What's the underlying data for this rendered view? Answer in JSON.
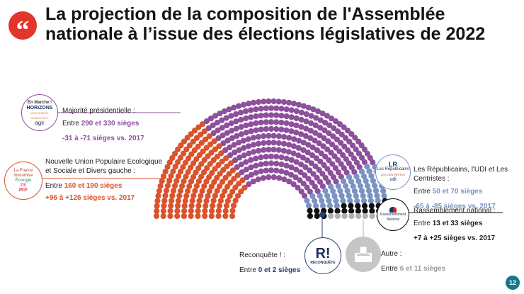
{
  "quote_glyph": "“",
  "title": "La projection de la composition de l'Assemblée nationale à l’issue des élections législatives de 2022",
  "colors": {
    "ensemble": "#8e4f9c",
    "nupes": "#d9532d",
    "lr_udi": "#7a93c3",
    "rn": "#111111",
    "reconquete": "#2a3e7c",
    "autre": "#b0b0b0",
    "quote": "#e2352c",
    "page": "#14788c"
  },
  "chart_data": {
    "type": "hemicycle",
    "title": "La projection de la composition de l'Assemblée nationale à l’issue des élections législatives de 2022",
    "total_seats": 577,
    "parties": [
      {
        "key": "nupes",
        "name": "Nouvelle Union Populaire Ecologique et Sociale et Divers gauche",
        "seats_min": 160,
        "seats_max": 190,
        "change_min": 96,
        "change_max": 126,
        "color": "#d9532d"
      },
      {
        "key": "ensemble",
        "name": "Majorité présidentielle",
        "seats_min": 290,
        "seats_max": 330,
        "change_min": -31,
        "change_max": -71,
        "color": "#8e4f9c"
      },
      {
        "key": "lr_udi",
        "name": "Les Républicains, l'UDI et Les Centristes",
        "seats_min": 50,
        "seats_max": 70,
        "change_min": -65,
        "change_max": -85,
        "color": "#7a93c3"
      },
      {
        "key": "rn",
        "name": "Rassemblement national",
        "seats_min": 13,
        "seats_max": 33,
        "change_min": 7,
        "change_max": 25,
        "color": "#111111"
      },
      {
        "key": "reconquete",
        "name": "Reconquête !",
        "seats_min": 0,
        "seats_max": 2,
        "color": "#2a3e7c"
      },
      {
        "key": "autre",
        "name": "Autre",
        "seats_min": 6,
        "seats_max": 11,
        "color": "#b0b0b0"
      }
    ],
    "hemicycle_seats": {
      "nupes": 175,
      "ensemble": 310,
      "lr_udi": 60,
      "rn": 23,
      "autre": 9
    }
  },
  "labels": {
    "ensemble": {
      "name": "Majorité présidentielle :",
      "prefix": "Entre ",
      "range": "290 et 330 sièges",
      "delta": "-31 à -71 sièges vs. 2017"
    },
    "nupes": {
      "name": "Nouvelle Union Populaire Ecologique et Sociale et Divers gauche :",
      "prefix": "Entre ",
      "range": "160 et 190 sièges",
      "delta": "+96 à +126 sièges  vs. 2017"
    },
    "lr_udi": {
      "name": "Les Républicains, l'UDI et Les Centristes :",
      "prefix": "Entre ",
      "range": "50 et 70 sièges",
      "delta": "-65 à -85 sièges  vs. 2017"
    },
    "rn": {
      "name": "Rassemblement national :",
      "prefix": "Entre ",
      "range": "13 et 33 sièges",
      "delta": "+7 à +25 sièges  vs. 2017"
    },
    "reconquete": {
      "name": "Reconquête ! :",
      "prefix": "Entre ",
      "range": "0 et 2 sièges"
    },
    "autre": {
      "name": "Autre :",
      "prefix": "Entre ",
      "range": "6 et 11 sièges"
    }
  },
  "logos": {
    "ensemble": [
      "En Marche !",
      "HORIZONS",
      "MOUVEMENT DÉMOCRATE",
      "agir"
    ],
    "nupes": [
      "La France insoumise",
      "Écologie",
      "PS",
      "PCF"
    ],
    "lr_udi": [
      "LR",
      "Les Républicains",
      "LES CENTRISTES",
      "udi"
    ],
    "rn": [
      "Rassemblement National"
    ],
    "reconquete": [
      "R!",
      "RECONQUÊTE"
    ],
    "autre_icon": "ballot-box-icon"
  },
  "page_number": "12"
}
